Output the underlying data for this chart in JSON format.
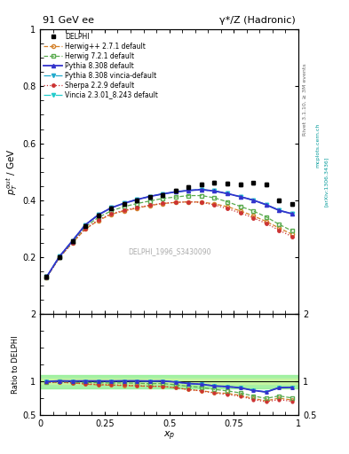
{
  "title_left": "91 GeV ee",
  "title_right": "γ*/Z (Hadronic)",
  "ylabel_main": "p$_T^{out}$ / GeV",
  "ylabel_ratio": "Ratio to DELPHI",
  "xlabel": "$x_p$",
  "watermark": "DELPHI_1996_S3430090",
  "rivet_label": "Rivet 3.1.10, ≥ 3M events",
  "arxiv_label": "[arXiv:1306.3436]",
  "mcplots_label": "mcplots.cern.ch",
  "ylim_main": [
    0.0,
    1.0
  ],
  "ylim_ratio": [
    0.5,
    2.0
  ],
  "xlim": [
    0.0,
    1.0
  ],
  "xp_data": [
    0.025,
    0.075,
    0.125,
    0.175,
    0.225,
    0.275,
    0.325,
    0.375,
    0.425,
    0.475,
    0.525,
    0.575,
    0.625,
    0.675,
    0.725,
    0.775,
    0.825,
    0.875,
    0.925,
    0.975
  ],
  "delphi_y": [
    0.13,
    0.2,
    0.255,
    0.31,
    0.345,
    0.37,
    0.385,
    0.398,
    0.41,
    0.418,
    0.432,
    0.447,
    0.455,
    0.462,
    0.457,
    0.454,
    0.46,
    0.454,
    0.4,
    0.385
  ],
  "delphi_yerr": [
    0.006,
    0.006,
    0.006,
    0.006,
    0.006,
    0.006,
    0.006,
    0.006,
    0.006,
    0.006,
    0.006,
    0.006,
    0.006,
    0.006,
    0.006,
    0.006,
    0.006,
    0.006,
    0.006,
    0.006
  ],
  "herwig_pp_y": [
    0.128,
    0.198,
    0.25,
    0.298,
    0.328,
    0.35,
    0.362,
    0.372,
    0.381,
    0.388,
    0.392,
    0.394,
    0.393,
    0.387,
    0.377,
    0.362,
    0.345,
    0.325,
    0.302,
    0.28
  ],
  "herwig72_y": [
    0.128,
    0.2,
    0.252,
    0.306,
    0.339,
    0.362,
    0.377,
    0.388,
    0.397,
    0.406,
    0.411,
    0.416,
    0.416,
    0.408,
    0.394,
    0.378,
    0.362,
    0.341,
    0.315,
    0.292
  ],
  "pythia8_y": [
    0.13,
    0.202,
    0.257,
    0.313,
    0.348,
    0.373,
    0.389,
    0.402,
    0.413,
    0.422,
    0.429,
    0.434,
    0.437,
    0.432,
    0.423,
    0.412,
    0.4,
    0.384,
    0.364,
    0.352
  ],
  "pythia8v_y": [
    0.13,
    0.202,
    0.257,
    0.313,
    0.348,
    0.373,
    0.389,
    0.402,
    0.413,
    0.422,
    0.429,
    0.434,
    0.437,
    0.432,
    0.423,
    0.412,
    0.4,
    0.384,
    0.364,
    0.352
  ],
  "sherpa_y": [
    0.128,
    0.198,
    0.25,
    0.3,
    0.33,
    0.352,
    0.364,
    0.374,
    0.382,
    0.389,
    0.392,
    0.394,
    0.392,
    0.383,
    0.37,
    0.355,
    0.338,
    0.318,
    0.294,
    0.272
  ],
  "vincia_y": [
    0.13,
    0.202,
    0.257,
    0.313,
    0.348,
    0.373,
    0.389,
    0.402,
    0.413,
    0.422,
    0.429,
    0.434,
    0.437,
    0.432,
    0.423,
    0.412,
    0.4,
    0.384,
    0.364,
    0.352
  ],
  "colors": {
    "delphi": "#000000",
    "herwig_pp": "#d4812a",
    "herwig72": "#5aab4f",
    "pythia8": "#3333cc",
    "pythia8v": "#22aacc",
    "sherpa": "#cc3333",
    "vincia": "#22cccc"
  },
  "legend_entries": [
    "DELPHI",
    "Herwig++ 2.7.1 default",
    "Herwig 7.2.1 default",
    "Pythia 8.308 default",
    "Pythia 8.308 vincia-default",
    "Sherpa 2.2.9 default",
    "Vincia 2.3.01_8.243 default"
  ]
}
